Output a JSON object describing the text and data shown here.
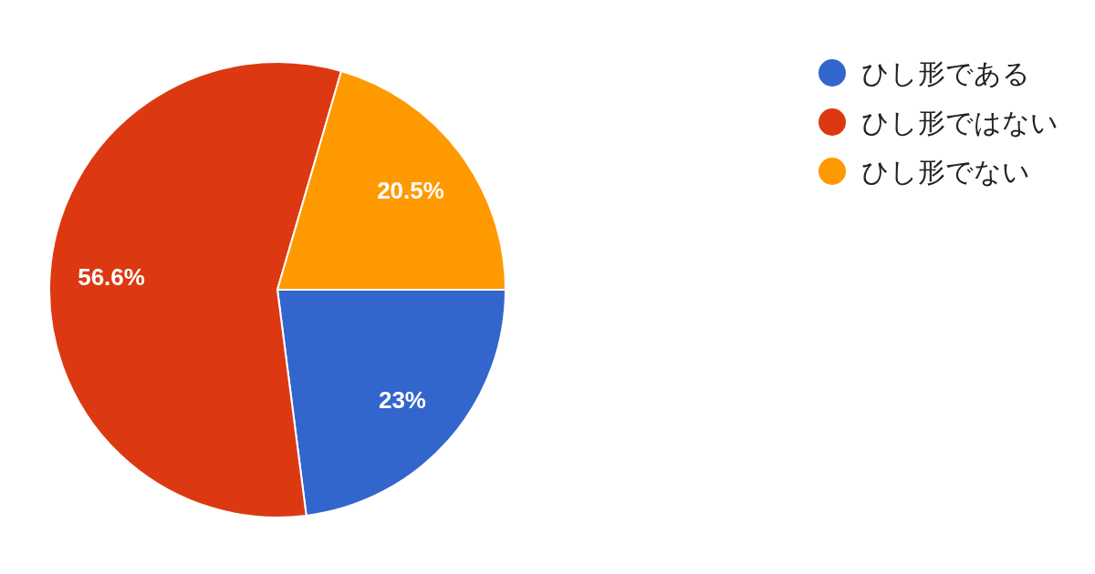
{
  "chart_data": {
    "type": "pie",
    "categories": [
      "ひし形である",
      "ひし形ではない",
      "ひし形でない"
    ],
    "values": [
      23,
      56.6,
      20.5
    ],
    "colors": [
      "#3366cc",
      "#dc3912",
      "#ff9900"
    ],
    "value_labels": [
      "23%",
      "56.6%",
      "20.5%"
    ],
    "legend": "top right"
  }
}
